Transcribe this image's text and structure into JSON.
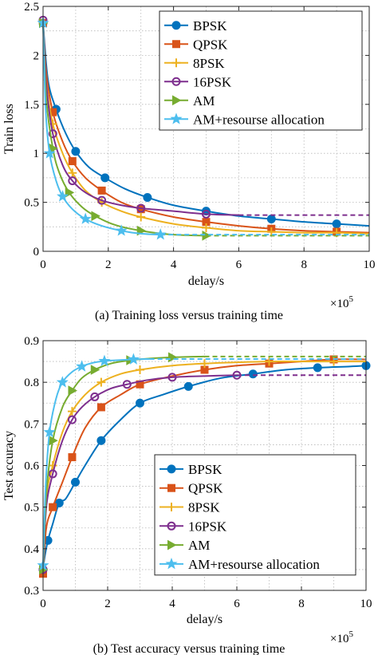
{
  "chart_data": [
    {
      "type": "line",
      "caption": "(a) Training loss versus training time",
      "xlabel": "delay/s",
      "ylabel": "Train loss",
      "x_scale_label": "×10^5",
      "xlim": [
        0,
        10
      ],
      "ylim": [
        0,
        2.5
      ],
      "xticks": [
        0,
        2,
        4,
        6,
        8,
        10
      ],
      "yticks": [
        0,
        0.5,
        1,
        1.5,
        2,
        2.5
      ],
      "grid": true,
      "legend_position": "top-right",
      "series": [
        {
          "name": "BPSK",
          "color": "#0072BD",
          "marker": "circle",
          "x": [
            0,
            0.15,
            0.4,
            0.7,
            1.0,
            1.4,
            1.9,
            2.5,
            3.2,
            4.0,
            5.0,
            6.0,
            7.0,
            8.0,
            9.0,
            10.0
          ],
          "y": [
            2.33,
            1.75,
            1.45,
            1.2,
            1.02,
            0.86,
            0.75,
            0.64,
            0.55,
            0.47,
            0.41,
            0.36,
            0.33,
            0.3,
            0.28,
            0.26
          ],
          "dashed_asymptote": null
        },
        {
          "name": "QPSK",
          "color": "#D95319",
          "marker": "square",
          "x": [
            0,
            0.1,
            0.3,
            0.6,
            0.9,
            1.3,
            1.8,
            2.4,
            3.0,
            4.0,
            5.0,
            6.0,
            7.0,
            8.0,
            9.0,
            10.0
          ],
          "y": [
            2.33,
            1.82,
            1.42,
            1.12,
            0.92,
            0.75,
            0.62,
            0.5,
            0.43,
            0.35,
            0.3,
            0.26,
            0.23,
            0.21,
            0.2,
            0.19
          ],
          "dashed_asymptote": 0.2
        },
        {
          "name": "8PSK",
          "color": "#EDB120",
          "marker": "plus",
          "x": [
            0,
            0.1,
            0.3,
            0.6,
            0.9,
            1.3,
            1.8,
            2.4,
            3.0,
            4.0,
            5.0,
            6.0,
            7.0,
            8.0,
            9.0,
            10.0
          ],
          "y": [
            2.33,
            1.72,
            1.3,
            1.0,
            0.8,
            0.62,
            0.5,
            0.41,
            0.35,
            0.28,
            0.24,
            0.21,
            0.2,
            0.19,
            0.19,
            0.18
          ],
          "dashed_asymptote": 0.18
        },
        {
          "name": "16PSK",
          "color": "#7E2F8E",
          "marker": "circle",
          "x": [
            0,
            0.1,
            0.3,
            0.6,
            0.9,
            1.3,
            1.8,
            2.4,
            3.0,
            4.0,
            5.0,
            6.0
          ],
          "y": [
            2.36,
            1.7,
            1.2,
            0.88,
            0.72,
            0.6,
            0.52,
            0.47,
            0.44,
            0.41,
            0.38,
            0.37
          ],
          "dashed_asymptote": 0.37
        },
        {
          "name": "AM",
          "color": "#77AC30",
          "marker": "triangle-right",
          "x": [
            0,
            0.1,
            0.3,
            0.5,
            0.8,
            1.2,
            1.6,
            2.2,
            3.0,
            4.0,
            5.0
          ],
          "y": [
            2.33,
            1.55,
            1.05,
            0.8,
            0.6,
            0.45,
            0.36,
            0.27,
            0.21,
            0.17,
            0.16
          ],
          "dashed_asymptote": 0.16
        },
        {
          "name": "AM+resourse allocation",
          "color": "#4DBEEE",
          "marker": "star",
          "x": [
            0,
            0.08,
            0.2,
            0.4,
            0.6,
            0.9,
            1.3,
            1.8,
            2.4,
            3.0,
            3.6
          ],
          "y": [
            2.33,
            1.45,
            1.0,
            0.72,
            0.56,
            0.43,
            0.33,
            0.26,
            0.21,
            0.18,
            0.17
          ],
          "dashed_asymptote": 0.17
        }
      ]
    },
    {
      "type": "line",
      "caption": "(b) Test accuracy versus training time",
      "xlabel": "delay/s",
      "ylabel": "Test accuracy",
      "x_scale_label": "×10^5",
      "xlim": [
        0,
        10
      ],
      "ylim": [
        0.3,
        0.9
      ],
      "xticks": [
        0,
        2,
        4,
        6,
        8,
        10
      ],
      "yticks": [
        0.3,
        0.4,
        0.5,
        0.6,
        0.7,
        0.8,
        0.9
      ],
      "grid": true,
      "legend_position": "bottom-right",
      "series": [
        {
          "name": "BPSK",
          "color": "#0072BD",
          "marker": "circle",
          "x": [
            0,
            0.05,
            0.15,
            0.3,
            0.5,
            0.7,
            1.0,
            1.3,
            1.8,
            2.4,
            3.0,
            3.7,
            4.5,
            5.5,
            6.5,
            7.5,
            8.5,
            9.5,
            10.0
          ],
          "y": [
            0.35,
            0.38,
            0.42,
            0.46,
            0.51,
            0.52,
            0.56,
            0.6,
            0.66,
            0.71,
            0.75,
            0.77,
            0.79,
            0.81,
            0.82,
            0.83,
            0.835,
            0.838,
            0.84
          ],
          "dashed_asymptote": null
        },
        {
          "name": "QPSK",
          "color": "#D95319",
          "marker": "square",
          "x": [
            0,
            0.1,
            0.3,
            0.6,
            0.9,
            1.3,
            1.8,
            2.4,
            3.0,
            4.0,
            5.0,
            6.0,
            7.0,
            8.0,
            9.0,
            10.0
          ],
          "y": [
            0.34,
            0.45,
            0.5,
            0.56,
            0.62,
            0.69,
            0.74,
            0.77,
            0.795,
            0.815,
            0.83,
            0.84,
            0.845,
            0.85,
            0.855,
            0.855
          ],
          "dashed_asymptote": 0.855
        },
        {
          "name": "8PSK",
          "color": "#EDB120",
          "marker": "plus",
          "x": [
            0,
            0.1,
            0.3,
            0.6,
            0.9,
            1.3,
            1.8,
            2.4,
            3.0,
            4.0,
            5.0,
            6.0,
            7.0,
            8.0,
            9.0,
            10.0
          ],
          "y": [
            0.35,
            0.52,
            0.6,
            0.68,
            0.73,
            0.77,
            0.8,
            0.82,
            0.83,
            0.84,
            0.845,
            0.848,
            0.85,
            0.85,
            0.85,
            0.85
          ],
          "dashed_asymptote": 0.85
        },
        {
          "name": "16PSK",
          "color": "#7E2F8E",
          "marker": "circle",
          "x": [
            0,
            0.1,
            0.3,
            0.6,
            0.9,
            1.2,
            1.6,
            2.1,
            2.6,
            3.2,
            4.0,
            5.0,
            6.0
          ],
          "y": [
            0.35,
            0.5,
            0.58,
            0.66,
            0.71,
            0.74,
            0.765,
            0.785,
            0.795,
            0.805,
            0.812,
            0.815,
            0.817
          ],
          "dashed_asymptote": 0.817
        },
        {
          "name": "AM",
          "color": "#77AC30",
          "marker": "triangle-right",
          "x": [
            0,
            0.1,
            0.3,
            0.6,
            0.9,
            1.2,
            1.6,
            2.1,
            2.7,
            3.3,
            4.0,
            5.0
          ],
          "y": [
            0.35,
            0.53,
            0.66,
            0.74,
            0.78,
            0.81,
            0.83,
            0.845,
            0.853,
            0.857,
            0.86,
            0.862
          ],
          "dashed_asymptote": 0.862
        },
        {
          "name": "AM+resourse allocation",
          "color": "#4DBEEE",
          "marker": "star",
          "x": [
            0,
            0.08,
            0.2,
            0.4,
            0.6,
            0.9,
            1.2,
            1.5,
            1.9,
            2.3,
            2.8,
            3.3
          ],
          "y": [
            0.36,
            0.55,
            0.68,
            0.76,
            0.8,
            0.825,
            0.838,
            0.846,
            0.851,
            0.853,
            0.855,
            0.856
          ],
          "dashed_asymptote": 0.856
        }
      ]
    }
  ]
}
